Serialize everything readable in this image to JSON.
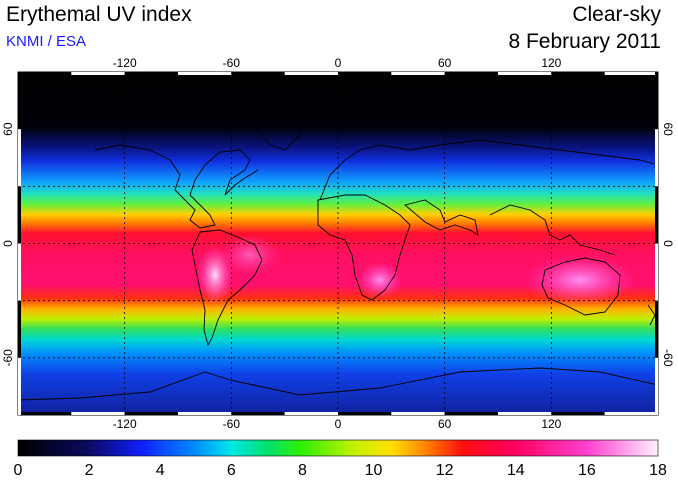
{
  "header": {
    "title": "Erythemal UV index",
    "credit": "KNMI / ESA",
    "condition": "Clear-sky",
    "date": "8 February 2011"
  },
  "map": {
    "projection": "equirectangular",
    "lon_range": [
      -180,
      180
    ],
    "lat_range": [
      -90,
      90
    ],
    "grid_lons": [
      -120,
      -60,
      0,
      60,
      120
    ],
    "grid_lats": [
      60,
      30,
      0,
      -30,
      -60
    ],
    "lon_tick_labels": [
      "-120",
      "-60",
      "0",
      "60",
      "120"
    ],
    "lat_tick_labels": [
      "60",
      "0",
      "-60"
    ],
    "lat_tick_values": [
      60,
      0,
      -60
    ],
    "colors": {
      "poles": "#000000",
      "high_lat": "#1030e0",
      "mid_lat": "#20e0c0",
      "subtropics": "#ffd000",
      "tropics": "#ff1060",
      "peak": "#ff80e8"
    }
  },
  "colorbar": {
    "min": 0,
    "max": 18,
    "tick_labels": [
      "0",
      "2",
      "4",
      "6",
      "8",
      "10",
      "12",
      "14",
      "16",
      "18"
    ],
    "tick_values": [
      0,
      2,
      4,
      6,
      8,
      10,
      12,
      14,
      16,
      18
    ],
    "stops": [
      {
        "value": 0,
        "color": "#000000"
      },
      {
        "value": 2,
        "color": "#0a0a60"
      },
      {
        "value": 3.5,
        "color": "#1020ff"
      },
      {
        "value": 5,
        "color": "#0090ff"
      },
      {
        "value": 6,
        "color": "#00e8e8"
      },
      {
        "value": 7,
        "color": "#00e070"
      },
      {
        "value": 8,
        "color": "#30f000"
      },
      {
        "value": 9.5,
        "color": "#c8f000"
      },
      {
        "value": 10.5,
        "color": "#ffe000"
      },
      {
        "value": 11.5,
        "color": "#ff8000"
      },
      {
        "value": 12.5,
        "color": "#ff1010"
      },
      {
        "value": 14,
        "color": "#ff0060"
      },
      {
        "value": 16,
        "color": "#ff40d0"
      },
      {
        "value": 18,
        "color": "#fff0ff"
      }
    ]
  }
}
